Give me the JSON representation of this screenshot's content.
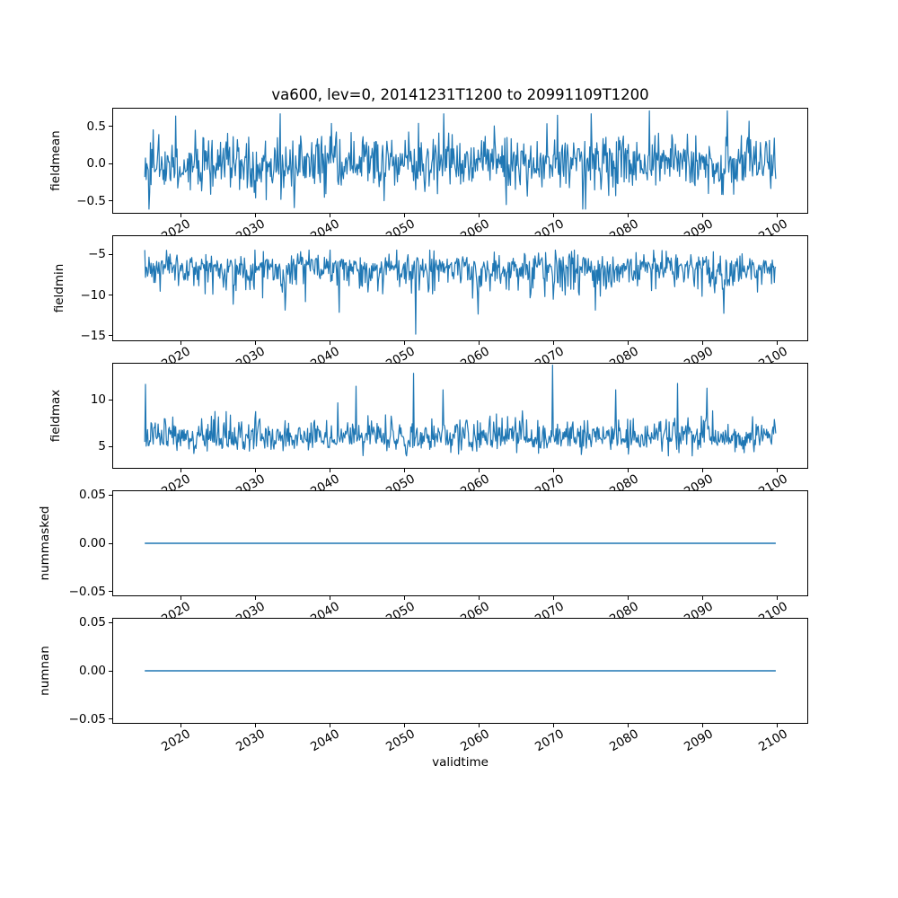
{
  "chart_data": {
    "type": "line",
    "title": "va600, lev=0, 20141231T1200 to 20991109T1200",
    "xlabel": "validtime",
    "line_color": "#1f77b4",
    "legend": "none",
    "grid": false,
    "x": {
      "xlim": [
        2010.75,
        2104.1
      ],
      "data_start": 2015.0,
      "data_end": 2099.86,
      "ticks": [
        "2020",
        "2030",
        "2040",
        "2050",
        "2060",
        "2070",
        "2080",
        "2090",
        "2100"
      ],
      "tick_values": [
        2020,
        2030,
        2040,
        2050,
        2060,
        2070,
        2080,
        2090,
        2100
      ],
      "tick_rotation_deg": 30
    },
    "subplots": [
      {
        "ylabel": "fieldmean",
        "ylim": [
          -0.67,
          0.75
        ],
        "yticks": [
          {
            "v": 0.5,
            "label": "0.5"
          },
          {
            "v": 0.0,
            "label": "0.0"
          },
          {
            "v": -0.5,
            "label": "−0.5"
          }
        ],
        "series": {
          "kind": "noise",
          "seed": 42,
          "n": 900,
          "mean": 0.0,
          "std_up": 0.19,
          "std_down": 0.19,
          "tail_p": 0.03,
          "min": -0.62,
          "max": 0.68,
          "spikes": [
            {
              "x": 2019.2,
              "v": 0.65
            },
            {
              "x": 2035.1,
              "v": -0.6
            },
            {
              "x": 2051.8,
              "v": 0.55
            },
            {
              "x": 2070.5,
              "v": 0.66
            },
            {
              "x": 2082.9,
              "v": 0.72
            },
            {
              "x": 2093.3,
              "v": 0.72
            }
          ]
        }
      },
      {
        "ylabel": "fieldmin",
        "ylim": [
          -15.67,
          -2.67
        ],
        "yticks": [
          {
            "v": -5,
            "label": "−5"
          },
          {
            "v": -10,
            "label": "−10"
          },
          {
            "v": -15,
            "label": "−15"
          }
        ],
        "series": {
          "kind": "noise",
          "seed": 7,
          "n": 900,
          "mean": -6.6,
          "std_up": 0.85,
          "std_down": 1.45,
          "tail_p": 0.02,
          "min": -12.3,
          "max": -4.4,
          "spikes": [
            {
              "x": 2033.9,
              "v": -11.9
            },
            {
              "x": 2051.4,
              "v": -14.9
            },
            {
              "x": 2059.8,
              "v": -12.4
            },
            {
              "x": 2075.6,
              "v": -11.9
            }
          ]
        }
      },
      {
        "ylabel": "fieldmax",
        "ylim": [
          2.6,
          13.95
        ],
        "yticks": [
          {
            "v": 10,
            "label": "10"
          },
          {
            "v": 5,
            "label": "5"
          }
        ],
        "series": {
          "kind": "noise",
          "seed": 13,
          "n": 900,
          "mean": 5.9,
          "std_up": 1.1,
          "std_down": 0.7,
          "tail_p": 0.025,
          "min": 3.9,
          "max": 11.8,
          "spikes": [
            {
              "x": 2043.4,
              "v": 11.5
            },
            {
              "x": 2051.2,
              "v": 12.9
            },
            {
              "x": 2069.8,
              "v": 13.8
            },
            {
              "x": 2078.3,
              "v": 11.1
            },
            {
              "x": 2086.6,
              "v": 11.8
            }
          ]
        }
      },
      {
        "ylabel": "nummasked",
        "ylim": [
          -0.055,
          0.055
        ],
        "yticks": [
          {
            "v": 0.05,
            "label": "0.05"
          },
          {
            "v": 0.0,
            "label": "0.00"
          },
          {
            "v": -0.05,
            "label": "−0.05"
          }
        ],
        "series": {
          "kind": "const",
          "value": 0.0
        }
      },
      {
        "ylabel": "numnan",
        "ylim": [
          -0.055,
          0.055
        ],
        "yticks": [
          {
            "v": 0.05,
            "label": "0.05"
          },
          {
            "v": 0.0,
            "label": "0.00"
          },
          {
            "v": -0.05,
            "label": "−0.05"
          }
        ],
        "series": {
          "kind": "const",
          "value": 0.0
        }
      }
    ]
  }
}
